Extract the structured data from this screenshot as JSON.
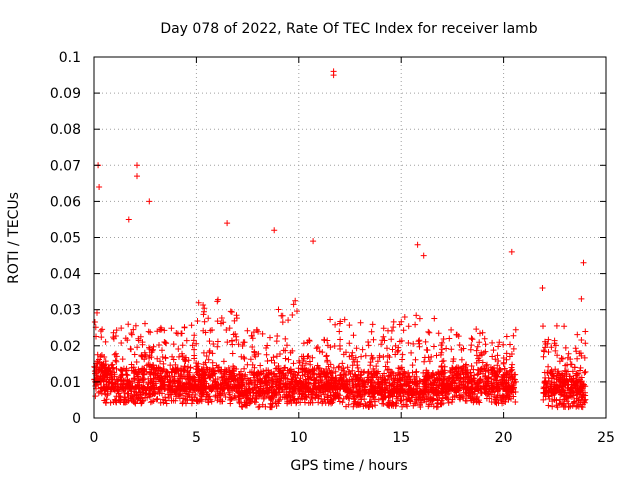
{
  "chart_data": {
    "type": "scatter",
    "title": "Day 078 of 2022, Rate Of TEC Index for receiver lamb",
    "xlabel": "GPS time / hours",
    "ylabel": "ROTI / TECUs",
    "xlim": [
      0,
      25
    ],
    "ylim": [
      0,
      0.1
    ],
    "x_ticks": [
      "0",
      "5",
      "10",
      "15",
      "20",
      "25"
    ],
    "y_ticks": [
      "0",
      "0.01",
      "0.02",
      "0.03",
      "0.04",
      "0.05",
      "0.06",
      "0.07",
      "0.08",
      "0.09",
      "0.1"
    ],
    "grid": true,
    "marker": "+",
    "color": "#ff0000",
    "data_gap_hours": [
      20.6,
      21.9
    ],
    "notable_points": [
      {
        "x": 11.7,
        "y": 0.096
      },
      {
        "x": 11.7,
        "y": 0.095
      },
      {
        "x": 0.2,
        "y": 0.07
      },
      {
        "x": 2.1,
        "y": 0.07
      },
      {
        "x": 2.1,
        "y": 0.067
      },
      {
        "x": 0.25,
        "y": 0.064
      },
      {
        "x": 2.7,
        "y": 0.06
      },
      {
        "x": 1.7,
        "y": 0.055
      },
      {
        "x": 6.5,
        "y": 0.054
      },
      {
        "x": 8.8,
        "y": 0.052
      },
      {
        "x": 10.7,
        "y": 0.049
      },
      {
        "x": 15.8,
        "y": 0.048
      },
      {
        "x": 20.4,
        "y": 0.046
      },
      {
        "x": 16.1,
        "y": 0.045
      },
      {
        "x": 23.9,
        "y": 0.043
      },
      {
        "x": 21.9,
        "y": 0.036
      },
      {
        "x": 23.8,
        "y": 0.033
      }
    ],
    "density_envelope": [
      {
        "x_start": 0.0,
        "x_end": 0.5,
        "y_low": 0.006,
        "y_high": 0.032
      },
      {
        "x_start": 0.5,
        "x_end": 2.5,
        "y_low": 0.004,
        "y_high": 0.028
      },
      {
        "x_start": 2.5,
        "x_end": 5.0,
        "y_low": 0.004,
        "y_high": 0.026
      },
      {
        "x_start": 5.0,
        "x_end": 7.0,
        "y_low": 0.004,
        "y_high": 0.033
      },
      {
        "x_start": 7.0,
        "x_end": 9.0,
        "y_low": 0.003,
        "y_high": 0.025
      },
      {
        "x_start": 9.0,
        "x_end": 10.0,
        "y_low": 0.004,
        "y_high": 0.034
      },
      {
        "x_start": 10.0,
        "x_end": 11.5,
        "y_low": 0.004,
        "y_high": 0.022
      },
      {
        "x_start": 11.5,
        "x_end": 12.3,
        "y_low": 0.004,
        "y_high": 0.03
      },
      {
        "x_start": 12.3,
        "x_end": 15.0,
        "y_low": 0.003,
        "y_high": 0.027
      },
      {
        "x_start": 15.0,
        "x_end": 17.0,
        "y_low": 0.003,
        "y_high": 0.029
      },
      {
        "x_start": 17.0,
        "x_end": 20.6,
        "y_low": 0.004,
        "y_high": 0.025
      },
      {
        "x_start": 21.9,
        "x_end": 24.0,
        "y_low": 0.003,
        "y_high": 0.026
      }
    ]
  }
}
